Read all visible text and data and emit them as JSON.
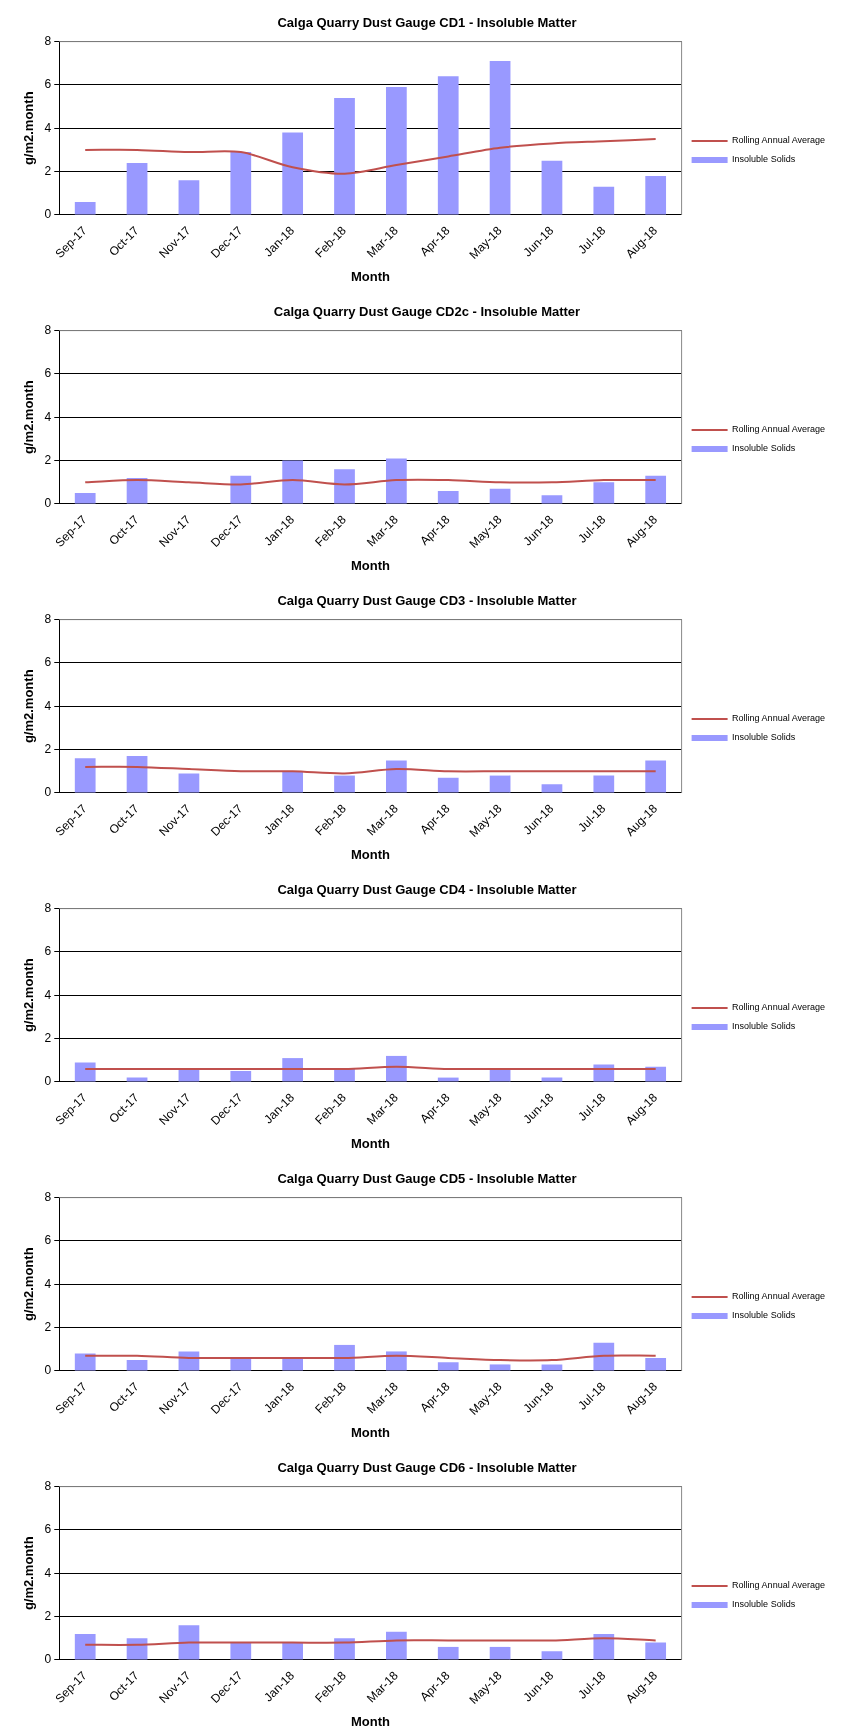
{
  "chart_data": [
    {
      "type": "bar",
      "title": "Calga Quarry Dust Gauge CD1 - Insoluble Matter",
      "xlabel": "Month",
      "ylabel": "g/m2.month",
      "categories": [
        "Sep-17",
        "Oct-17",
        "Nov-17",
        "Dec-17",
        "Jan-18",
        "Feb-18",
        "Mar-18",
        "Apr-18",
        "May-18",
        "Jun-18",
        "Jul-18",
        "Aug-18"
      ],
      "ylim": [
        0,
        8
      ],
      "yticks": [
        0,
        2,
        4,
        6,
        8
      ],
      "grid": "y",
      "legend": "right",
      "series": [
        {
          "name": "Insoluble Solids",
          "color": "#9999ff",
          "values": [
            0.6,
            2.4,
            1.6,
            2.9,
            3.8,
            5.4,
            5.9,
            6.4,
            7.1,
            2.5,
            1.3,
            1.8
          ]
        },
        {
          "name": "Rolling Annual Average",
          "type": "line",
          "color": "#c0504d",
          "values": [
            3.0,
            3.0,
            2.9,
            2.9,
            2.2,
            1.9,
            2.3,
            2.7,
            3.1,
            3.3,
            3.4,
            3.5
          ]
        }
      ]
    },
    {
      "type": "bar",
      "title": "Calga Quarry Dust Gauge CD2c - Insoluble Matter",
      "xlabel": "Month",
      "ylabel": "g/m2.month",
      "categories": [
        "Sep-17",
        "Oct-17",
        "Nov-17",
        "Dec-17",
        "Jan-18",
        "Feb-18",
        "Mar-18",
        "Apr-18",
        "May-18",
        "Jun-18",
        "Jul-18",
        "Aug-18"
      ],
      "ylim": [
        0,
        8
      ],
      "yticks": [
        0,
        2,
        4,
        6,
        8
      ],
      "grid": "y",
      "legend": "right",
      "series": [
        {
          "name": "Insoluble Solids",
          "color": "#9999ff",
          "values": [
            0.5,
            1.2,
            null,
            1.3,
            2.0,
            1.6,
            2.1,
            0.6,
            0.7,
            0.4,
            1.0,
            1.3
          ]
        },
        {
          "name": "Rolling Annual Average",
          "type": "line",
          "color": "#c0504d",
          "values": [
            1.0,
            1.1,
            1.0,
            0.9,
            1.1,
            0.9,
            1.1,
            1.1,
            1.0,
            1.0,
            1.1,
            1.1
          ]
        }
      ]
    },
    {
      "type": "bar",
      "title": "Calga Quarry Dust Gauge CD3 - Insoluble Matter",
      "xlabel": "Month",
      "ylabel": "g/m2.month",
      "categories": [
        "Sep-17",
        "Oct-17",
        "Nov-17",
        "Dec-17",
        "Jan-18",
        "Feb-18",
        "Mar-18",
        "Apr-18",
        "May-18",
        "Jun-18",
        "Jul-18",
        "Aug-18"
      ],
      "ylim": [
        0,
        8
      ],
      "yticks": [
        0,
        2,
        4,
        6,
        8
      ],
      "grid": "y",
      "legend": "right",
      "series": [
        {
          "name": "Insoluble Solids",
          "color": "#9999ff",
          "values": [
            1.6,
            1.7,
            0.9,
            null,
            1.0,
            0.8,
            1.5,
            0.7,
            0.8,
            0.4,
            0.8,
            1.5
          ]
        },
        {
          "name": "Rolling Annual Average",
          "type": "line",
          "color": "#c0504d",
          "values": [
            1.2,
            1.2,
            1.1,
            1.0,
            1.0,
            0.9,
            1.1,
            1.0,
            1.0,
            1.0,
            1.0,
            1.0
          ]
        }
      ]
    },
    {
      "type": "bar",
      "title": "Calga Quarry Dust Gauge CD4 - Insoluble Matter",
      "xlabel": "Month",
      "ylabel": "g/m2.month",
      "categories": [
        "Sep-17",
        "Oct-17",
        "Nov-17",
        "Dec-17",
        "Jan-18",
        "Feb-18",
        "Mar-18",
        "Apr-18",
        "May-18",
        "Jun-18",
        "Jul-18",
        "Aug-18"
      ],
      "ylim": [
        0,
        8
      ],
      "yticks": [
        0,
        2,
        4,
        6,
        8
      ],
      "grid": "y",
      "legend": "right",
      "series": [
        {
          "name": "Insoluble Solids",
          "color": "#9999ff",
          "values": [
            0.9,
            0.2,
            0.6,
            0.5,
            1.1,
            0.6,
            1.2,
            0.2,
            0.6,
            0.2,
            0.8,
            0.7
          ]
        },
        {
          "name": "Rolling Annual Average",
          "type": "line",
          "color": "#c0504d",
          "values": [
            0.6,
            0.6,
            0.6,
            0.6,
            0.6,
            0.6,
            0.7,
            0.6,
            0.6,
            0.6,
            0.6,
            0.6
          ]
        }
      ]
    },
    {
      "type": "bar",
      "title": "Calga Quarry Dust Gauge CD5 - Insoluble Matter",
      "xlabel": "Month",
      "ylabel": "g/m2.month",
      "categories": [
        "Sep-17",
        "Oct-17",
        "Nov-17",
        "Dec-17",
        "Jan-18",
        "Feb-18",
        "Mar-18",
        "Apr-18",
        "May-18",
        "Jun-18",
        "Jul-18",
        "Aug-18"
      ],
      "ylim": [
        0,
        8
      ],
      "yticks": [
        0,
        2,
        4,
        6,
        8
      ],
      "grid": "y",
      "legend": "right",
      "series": [
        {
          "name": "Insoluble Solids",
          "color": "#9999ff",
          "values": [
            0.8,
            0.5,
            0.9,
            0.6,
            0.6,
            1.2,
            0.9,
            0.4,
            0.3,
            0.3,
            1.3,
            0.6
          ]
        },
        {
          "name": "Rolling Annual Average",
          "type": "line",
          "color": "#c0504d",
          "values": [
            0.7,
            0.7,
            0.6,
            0.6,
            0.6,
            0.6,
            0.7,
            0.6,
            0.5,
            0.5,
            0.7,
            0.7
          ]
        }
      ]
    },
    {
      "type": "bar",
      "title": "Calga Quarry Dust Gauge CD6 - Insoluble Matter",
      "xlabel": "Month",
      "ylabel": "g/m2.month",
      "categories": [
        "Sep-17",
        "Oct-17",
        "Nov-17",
        "Dec-17",
        "Jan-18",
        "Feb-18",
        "Mar-18",
        "Apr-18",
        "May-18",
        "Jun-18",
        "Jul-18",
        "Aug-18"
      ],
      "ylim": [
        0,
        8
      ],
      "yticks": [
        0,
        2,
        4,
        6,
        8
      ],
      "grid": "y",
      "legend": "right",
      "series": [
        {
          "name": "Insoluble Solids",
          "color": "#9999ff",
          "values": [
            1.2,
            1.0,
            1.6,
            0.8,
            0.8,
            1.0,
            1.3,
            0.6,
            0.6,
            0.4,
            1.2,
            0.8
          ]
        },
        {
          "name": "Rolling Annual Average",
          "type": "line",
          "color": "#c0504d",
          "values": [
            0.7,
            0.7,
            0.8,
            0.8,
            0.8,
            0.8,
            0.9,
            0.9,
            0.9,
            0.9,
            1.0,
            0.9
          ]
        }
      ]
    }
  ]
}
